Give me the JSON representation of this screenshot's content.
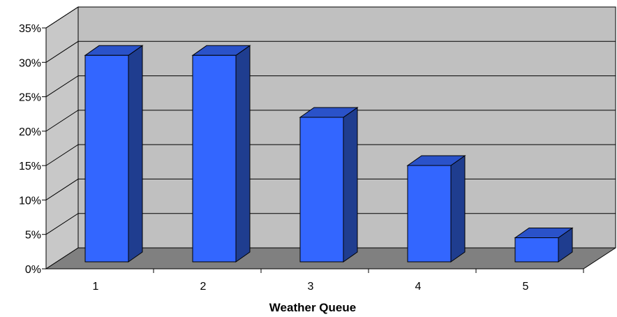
{
  "chart_data": {
    "type": "bar",
    "title": "",
    "xlabel": "Weather Queue",
    "ylabel": "",
    "categories": [
      "1",
      "2",
      "3",
      "4",
      "5"
    ],
    "values": [
      30,
      30,
      21,
      14,
      3.5
    ],
    "ylim": [
      0,
      35
    ],
    "yticks": [
      "0%",
      "5%",
      "10%",
      "15%",
      "20%",
      "25%",
      "30%",
      "35%"
    ],
    "grid": true,
    "legend": "none",
    "style": "3d-column",
    "colors": {
      "bar_front": "#3366ff",
      "bar_top": "#2a52c9",
      "bar_side": "#1f3d8f",
      "back_wall": "#c0c0c0",
      "side_wall": "#c8c8c8",
      "floor": "#808080",
      "gridline": "#000000"
    }
  }
}
